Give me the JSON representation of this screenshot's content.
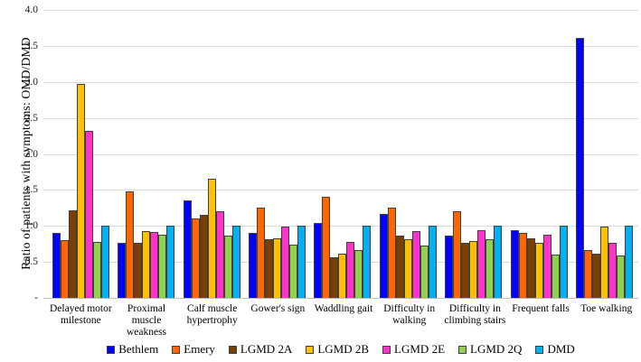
{
  "chart_data": {
    "type": "bar",
    "title": "",
    "xlabel": "",
    "ylabel": "Ratio of  patients with symptoms: OMD/DMD",
    "ylim": [
      0,
      4.0
    ],
    "ytick_step": 0.5,
    "ytick_labels": [
      "-",
      "0.5",
      "1.0",
      "1.5",
      "2.0",
      "2.5",
      "3.0",
      "3.5",
      "4.0"
    ],
    "grid": true,
    "legend_position": "bottom",
    "categories": [
      "Delayed motor\nmilestone",
      "Proximal\nmuscle\nweakness",
      "Calf muscle\nhypertrophy",
      "Gower's sign",
      "Waddling gait",
      "Difficulty in\nwalking",
      "Difficulty in\nclimbing stairs",
      "Frequent falls",
      "Toe walking"
    ],
    "series": [
      {
        "name": "Bethlem",
        "color": "#0000FF",
        "values": [
          0.9,
          0.76,
          1.35,
          0.9,
          1.04,
          1.16,
          0.86,
          0.94,
          3.61
        ]
      },
      {
        "name": "Emery",
        "color": "#FF6600",
        "values": [
          0.8,
          1.48,
          1.1,
          1.26,
          1.41,
          1.25,
          1.2,
          0.9,
          0.67
        ]
      },
      {
        "name": "LGMD 2A",
        "color": "#7B3F00",
        "values": [
          1.22,
          0.77,
          1.15,
          0.82,
          0.57,
          0.87,
          0.77,
          0.83,
          0.61
        ]
      },
      {
        "name": "LGMD 2B",
        "color": "#FFC000",
        "values": [
          2.97,
          0.93,
          1.65,
          0.83,
          0.61,
          0.81,
          0.79,
          0.76,
          0.99
        ]
      },
      {
        "name": "LGMD 2E",
        "color": "#FF33CC",
        "values": [
          2.32,
          0.91,
          1.21,
          0.99,
          0.78,
          0.93,
          0.94,
          0.88,
          0.77
        ]
      },
      {
        "name": "LGMD 2Q",
        "color": "#92D050",
        "values": [
          0.78,
          0.88,
          0.86,
          0.74,
          0.66,
          0.73,
          0.82,
          0.6,
          0.59
        ]
      },
      {
        "name": "DMD",
        "color": "#00B0F0",
        "values": [
          1.0,
          1.0,
          1.0,
          1.0,
          1.0,
          1.0,
          1.0,
          1.0,
          1.0
        ]
      }
    ],
    "colors": {
      "gridline": "#D9D9D9",
      "axis_line": "#BFBFBF",
      "bar_outline": "#3F3F3F"
    }
  }
}
